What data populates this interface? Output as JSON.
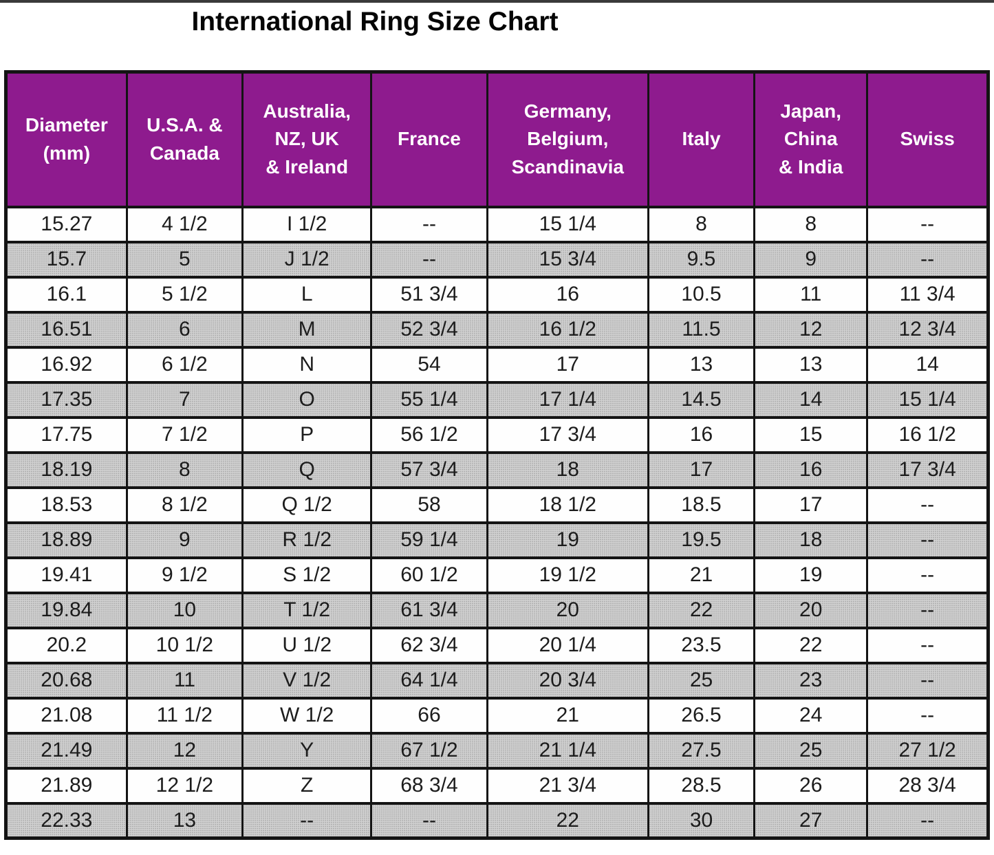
{
  "title": "International Ring Size Chart",
  "colors": {
    "header_bg": "#8e1b8e",
    "header_text": "#ffffff",
    "row_bg": "#fefefe",
    "row_alt_bg": "#d2d2d2",
    "border": "#141414",
    "title_text": "#050505"
  },
  "chart_data": {
    "type": "table",
    "title": "International Ring Size Chart",
    "columns": [
      "Diameter\n(mm)",
      "U.S.A. &\nCanada",
      "Australia,\nNZ, UK\n& Ireland",
      "France",
      "Germany,\nBelgium,\nScandinavia",
      "Italy",
      "Japan,\nChina\n& India",
      "Swiss"
    ],
    "rows": [
      [
        "15.27",
        "4 1/2",
        "I 1/2",
        "--",
        "15 1/4",
        "8",
        "8",
        "--"
      ],
      [
        "15.7",
        "5",
        "J 1/2",
        "--",
        "15 3/4",
        "9.5",
        "9",
        "--"
      ],
      [
        "16.1",
        "5 1/2",
        "L",
        "51 3/4",
        "16",
        "10.5",
        "11",
        "11 3/4"
      ],
      [
        "16.51",
        "6",
        "M",
        "52 3/4",
        "16 1/2",
        "11.5",
        "12",
        "12 3/4"
      ],
      [
        "16.92",
        "6 1/2",
        "N",
        "54",
        "17",
        "13",
        "13",
        "14"
      ],
      [
        "17.35",
        "7",
        "O",
        "55 1/4",
        "17 1/4",
        "14.5",
        "14",
        "15 1/4"
      ],
      [
        "17.75",
        "7 1/2",
        "P",
        "56 1/2",
        "17 3/4",
        "16",
        "15",
        "16 1/2"
      ],
      [
        "18.19",
        "8",
        "Q",
        "57 3/4",
        "18",
        "17",
        "16",
        "17 3/4"
      ],
      [
        "18.53",
        "8 1/2",
        "Q 1/2",
        "58",
        "18 1/2",
        "18.5",
        "17",
        "--"
      ],
      [
        "18.89",
        "9",
        "R 1/2",
        "59 1/4",
        "19",
        "19.5",
        "18",
        "--"
      ],
      [
        "19.41",
        "9 1/2",
        "S 1/2",
        "60 1/2",
        "19 1/2",
        "21",
        "19",
        "--"
      ],
      [
        "19.84",
        "10",
        "T 1/2",
        "61 3/4",
        "20",
        "22",
        "20",
        "--"
      ],
      [
        "20.2",
        "10 1/2",
        "U 1/2",
        "62 3/4",
        "20 1/4",
        "23.5",
        "22",
        "--"
      ],
      [
        "20.68",
        "11",
        "V 1/2",
        "64 1/4",
        "20 3/4",
        "25",
        "23",
        "--"
      ],
      [
        "21.08",
        "11 1/2",
        "W 1/2",
        "66",
        "21",
        "26.5",
        "24",
        "--"
      ],
      [
        "21.49",
        "12",
        "Y",
        "67 1/2",
        "21 1/4",
        "27.5",
        "25",
        "27 1/2"
      ],
      [
        "21.89",
        "12 1/2",
        "Z",
        "68 3/4",
        "21 3/4",
        "28.5",
        "26",
        "28 3/4"
      ],
      [
        "22.33",
        "13",
        "--",
        "--",
        "22",
        "30",
        "27",
        "--"
      ]
    ]
  }
}
